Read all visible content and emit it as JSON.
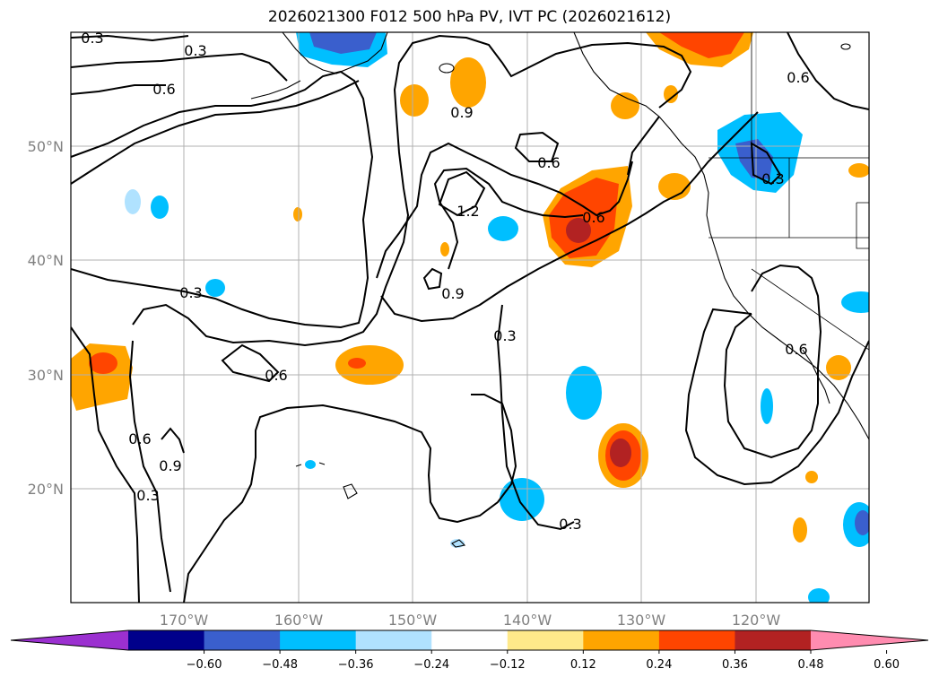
{
  "title": "2026021300 F012 500 hPa PV, IVT PC (2026021612)",
  "lat_labels": [
    "50°N",
    "40°N",
    "30°N",
    "20°N"
  ],
  "lon_labels": [
    "170°W",
    "160°W",
    "150°W",
    "140°W",
    "130°W",
    "120°W"
  ],
  "colorbar": {
    "ticks": [
      "−0.60",
      "−0.48",
      "−0.36",
      "−0.24",
      "−0.12",
      "0.12",
      "0.24",
      "0.36",
      "0.48",
      "0.60"
    ],
    "colors": [
      "#9b30d0",
      "#00008b",
      "#3a5fcd",
      "#00bfff",
      "#b0e2ff",
      "#ffffff",
      "#ffe98a",
      "#ffa500",
      "#ff4500",
      "#b22222",
      "#ff8cb0"
    ]
  },
  "contour_labels": {
    "c03_nw": "0.3",
    "c03_top": "0.3",
    "c06_nw": "0.6",
    "c09_a": "0.9",
    "c06_a": "0.6",
    "c12": "1.2",
    "c09_b": "0.9",
    "c06_b": "0.6",
    "c03_mid": "0.3",
    "c06_c": "0.6",
    "c03_w": "0.3",
    "c03_c": "0.3",
    "c06_ne": "0.6",
    "c03_bc": "0.3",
    "c06_e": "0.6",
    "c06_sw": "0.6",
    "c09_sw": "0.9",
    "c03_sw": "0.3"
  }
}
